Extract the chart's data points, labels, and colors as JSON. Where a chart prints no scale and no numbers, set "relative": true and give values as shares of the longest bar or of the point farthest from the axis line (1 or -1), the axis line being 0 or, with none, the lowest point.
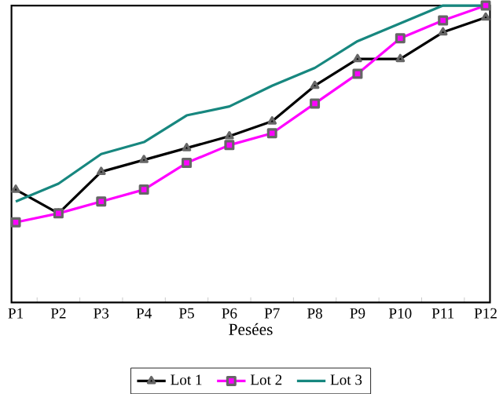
{
  "chart_data": {
    "type": "line",
    "relative": true,
    "xlabel": "Pesées",
    "categories": [
      "P1",
      "P2",
      "P3",
      "P4",
      "P5",
      "P6",
      "P7",
      "P8",
      "P9",
      "P10",
      "P11",
      "P12"
    ],
    "legend": "bottom",
    "grid": false,
    "line_style": "solid",
    "series": [
      {
        "name": "Lot 1",
        "color": "#000000",
        "marker": "triangle",
        "values": [
          0.38,
          0.3,
          0.44,
          0.48,
          0.52,
          0.56,
          0.61,
          0.73,
          0.82,
          0.82,
          0.91,
          0.96
        ]
      },
      {
        "name": "Lot 2",
        "color": "#ff00ff",
        "marker": "square",
        "values": [
          0.27,
          0.3,
          0.34,
          0.38,
          0.47,
          0.53,
          0.57,
          0.67,
          0.77,
          0.89,
          0.95,
          1.0
        ]
      },
      {
        "name": "Lot 3",
        "color": "#17877f",
        "marker": "none",
        "values": [
          0.34,
          0.4,
          0.5,
          0.54,
          0.63,
          0.66,
          0.73,
          0.79,
          0.88,
          0.94,
          1.0,
          1.0
        ]
      }
    ]
  }
}
